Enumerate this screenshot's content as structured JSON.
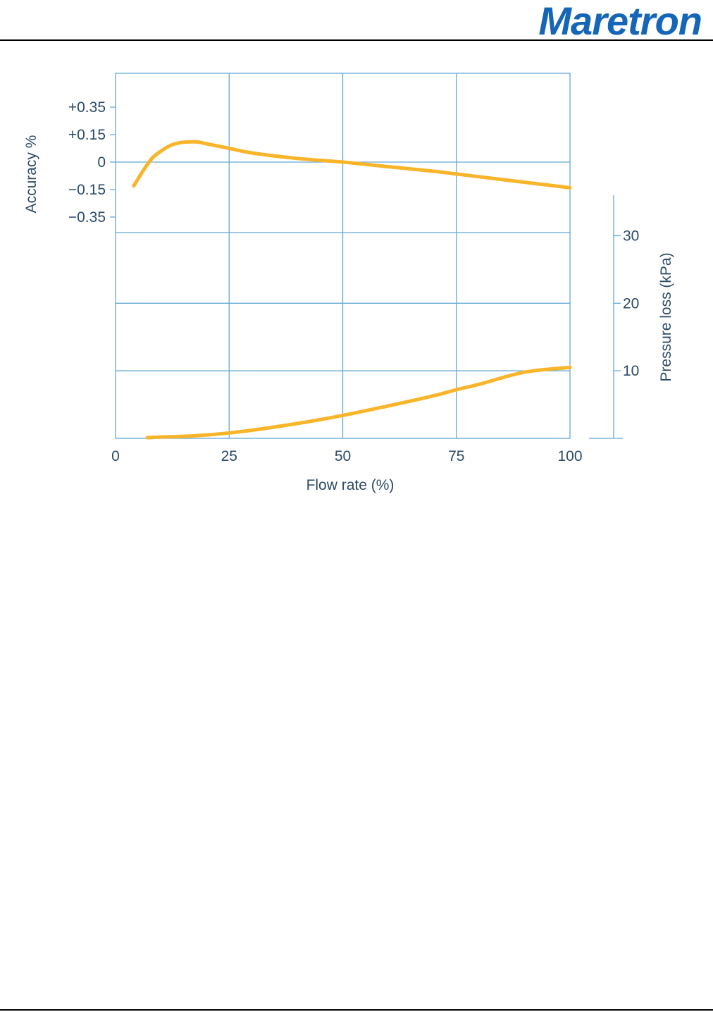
{
  "header": {
    "logo_text": "Maretron"
  },
  "colors": {
    "brand": "#1565b8",
    "grid": "#63a9d6",
    "curve": "#f9b52a",
    "text": "#2a4a66"
  },
  "chart_data": {
    "type": "line",
    "title": "",
    "xlabel": "Flow rate (%)",
    "ylabel_left": "Accuracy %",
    "ylabel_right": "Pressure loss (kPa)",
    "x_ticks": [
      0,
      25,
      50,
      75,
      100
    ],
    "xlim": [
      0,
      100
    ],
    "accuracy_ticks": [
      {
        "label": "+0.35",
        "value": 0.35
      },
      {
        "label": "+0.15",
        "value": 0.15
      },
      {
        "label": "0",
        "value": 0
      },
      {
        "label": "−0.15",
        "value": -0.15
      },
      {
        "label": "−0.35",
        "value": -0.35
      }
    ],
    "pressure_ticks": [
      {
        "label": "30",
        "value": 30
      },
      {
        "label": "20",
        "value": 20
      },
      {
        "label": "10",
        "value": 10
      }
    ],
    "pressure_lim": [
      0,
      36
    ],
    "grid": true,
    "series": [
      {
        "axis": "accuracy",
        "x": [
          4,
          6,
          8,
          10,
          12,
          14,
          16,
          18,
          20,
          25,
          30,
          40,
          50,
          60,
          70,
          75,
          80,
          90,
          100
        ],
        "y": [
          -0.13,
          -0.05,
          0.02,
          0.06,
          0.09,
          0.105,
          0.11,
          0.11,
          0.1,
          0.075,
          0.05,
          0.02,
          0.0,
          -0.025,
          -0.05,
          -0.065,
          -0.08,
          -0.11,
          -0.14
        ]
      },
      {
        "axis": "pressure",
        "x": [
          7,
          10,
          15,
          20,
          25,
          30,
          40,
          50,
          60,
          70,
          75,
          80,
          90,
          100
        ],
        "y": [
          0.1,
          0.2,
          0.3,
          0.5,
          0.8,
          1.2,
          2.2,
          3.4,
          4.8,
          6.3,
          7.2,
          8.0,
          9.8,
          10.5
        ]
      }
    ]
  }
}
